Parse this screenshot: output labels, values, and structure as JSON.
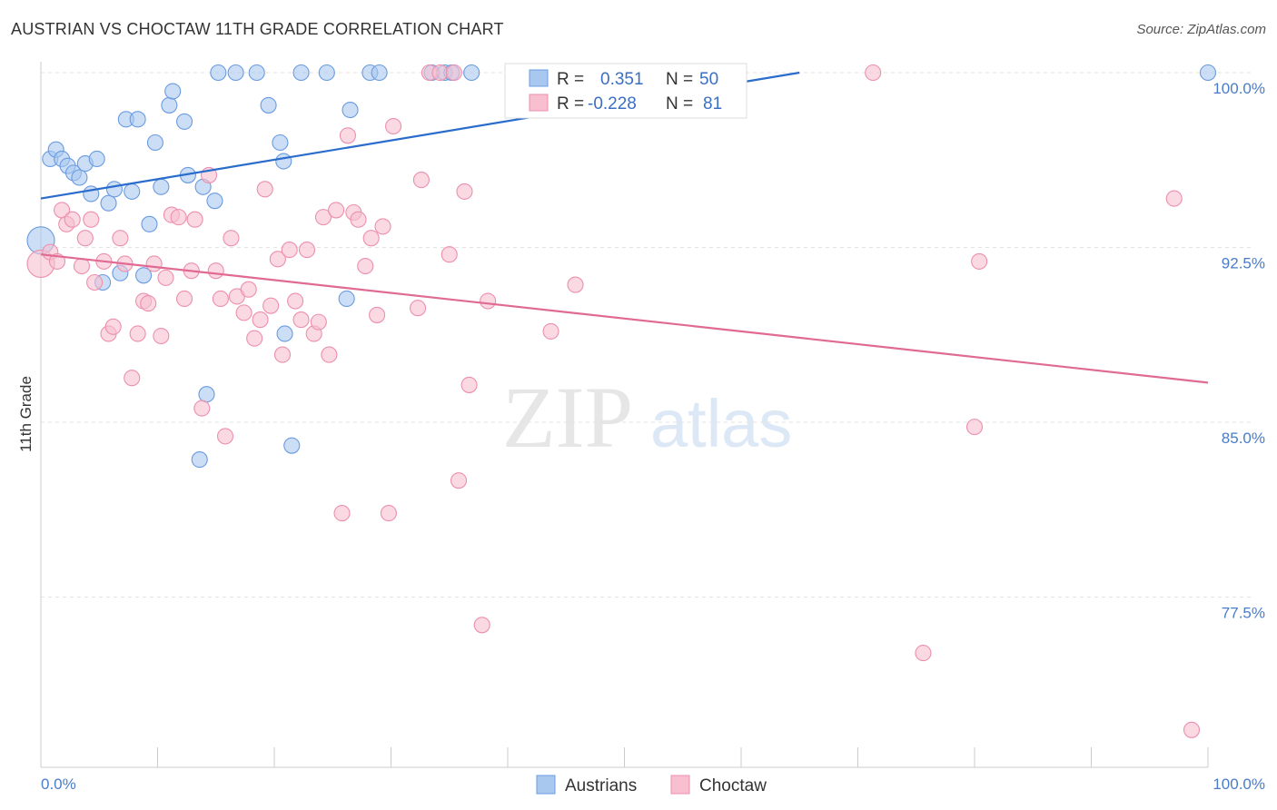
{
  "header": {
    "title": "AUSTRIAN VS CHOCTAW 11TH GRADE CORRELATION CHART",
    "source": "Source: ZipAtlas.com"
  },
  "watermark": {
    "zip": "ZIP",
    "atlas": "atlas"
  },
  "legend": {
    "r_label": "R =",
    "n_label": "N =",
    "rows": [
      {
        "r": "0.351",
        "n": "50"
      },
      {
        "r": "-0.228",
        "n": "81"
      }
    ]
  },
  "chart_data": {
    "type": "scatter",
    "title": "AUSTRIAN VS CHOCTAW 11TH GRADE CORRELATION CHART",
    "ylabel": "11th Grade",
    "xlabel": "",
    "xlim": [
      0,
      100
    ],
    "ylim": [
      70.5,
      101.5
    ],
    "x_tick_labels": [
      "0.0%",
      "100.0%"
    ],
    "y_ticks": [
      77.5,
      85.0,
      92.5,
      100.0
    ],
    "y_tick_labels": [
      "77.5%",
      "85.0%",
      "92.5%",
      "100.0%"
    ],
    "grid": true,
    "legend_position": "top-center",
    "colors": {
      "austrians_fill": "#a9c8f0",
      "austrians_stroke": "#6a9be0",
      "austrians_line": "#2a6ccc",
      "choctaw_fill": "#f7bfd0",
      "choctaw_stroke": "#ec8fae",
      "choctaw_line": "#e06a93",
      "tick_text": "#4a7cc9"
    },
    "series": [
      {
        "name": "Austrians",
        "r": 0.351,
        "n": 50,
        "trend": {
          "x": [
            0,
            65
          ],
          "y": [
            94.6,
            100.0
          ]
        },
        "points": [
          [
            0.0,
            92.8
          ],
          [
            0.8,
            96.3
          ],
          [
            1.3,
            96.7
          ],
          [
            1.8,
            96.3
          ],
          [
            2.3,
            96.0
          ],
          [
            2.8,
            95.7
          ],
          [
            3.3,
            95.5
          ],
          [
            3.8,
            96.1
          ],
          [
            4.3,
            94.8
          ],
          [
            4.8,
            96.3
          ],
          [
            5.3,
            91.0
          ],
          [
            5.8,
            94.4
          ],
          [
            6.3,
            95.0
          ],
          [
            6.8,
            91.4
          ],
          [
            7.3,
            98.0
          ],
          [
            7.8,
            94.9
          ],
          [
            8.3,
            98.0
          ],
          [
            8.8,
            91.3
          ],
          [
            9.3,
            93.5
          ],
          [
            9.8,
            97.0
          ],
          [
            10.3,
            95.1
          ],
          [
            11.0,
            98.6
          ],
          [
            11.3,
            99.2
          ],
          [
            12.3,
            97.9
          ],
          [
            12.6,
            95.6
          ],
          [
            13.6,
            83.4
          ],
          [
            13.9,
            95.1
          ],
          [
            14.2,
            86.2
          ],
          [
            14.9,
            94.5
          ],
          [
            15.2,
            100.0
          ],
          [
            16.7,
            100.0
          ],
          [
            18.5,
            100.0
          ],
          [
            19.5,
            98.6
          ],
          [
            20.5,
            97.0
          ],
          [
            20.8,
            96.2
          ],
          [
            20.9,
            88.8
          ],
          [
            21.5,
            84.0
          ],
          [
            22.3,
            100.0
          ],
          [
            24.5,
            100.0
          ],
          [
            26.2,
            90.3
          ],
          [
            26.5,
            98.4
          ],
          [
            28.2,
            100.0
          ],
          [
            29.0,
            100.0
          ],
          [
            33.5,
            100.0
          ],
          [
            34.6,
            100.0
          ],
          [
            35.2,
            100.0
          ],
          [
            36.9,
            100.0
          ],
          [
            41.0,
            100.0
          ],
          [
            52.5,
            100.0
          ],
          [
            100.0,
            100.0
          ]
        ]
      },
      {
        "name": "Choctaw",
        "r": -0.228,
        "n": 81,
        "trend": {
          "x": [
            0,
            100
          ],
          "y": [
            92.2,
            86.7
          ]
        },
        "points": [
          [
            0.0,
            91.8
          ],
          [
            0.8,
            92.3
          ],
          [
            1.4,
            91.9
          ],
          [
            1.8,
            94.1
          ],
          [
            2.2,
            93.5
          ],
          [
            2.7,
            93.7
          ],
          [
            3.5,
            91.7
          ],
          [
            3.8,
            92.9
          ],
          [
            4.3,
            93.7
          ],
          [
            4.6,
            91.0
          ],
          [
            5.4,
            91.9
          ],
          [
            5.8,
            88.8
          ],
          [
            6.2,
            89.1
          ],
          [
            6.8,
            92.9
          ],
          [
            7.2,
            91.8
          ],
          [
            7.8,
            86.9
          ],
          [
            8.3,
            88.8
          ],
          [
            8.8,
            90.2
          ],
          [
            9.2,
            90.1
          ],
          [
            9.7,
            91.8
          ],
          [
            10.3,
            88.7
          ],
          [
            10.7,
            91.2
          ],
          [
            11.2,
            93.9
          ],
          [
            11.8,
            93.8
          ],
          [
            12.3,
            90.3
          ],
          [
            12.9,
            91.5
          ],
          [
            13.2,
            93.7
          ],
          [
            13.8,
            85.6
          ],
          [
            14.4,
            95.6
          ],
          [
            15.0,
            91.5
          ],
          [
            15.4,
            90.3
          ],
          [
            15.8,
            84.4
          ],
          [
            16.3,
            92.9
          ],
          [
            16.8,
            90.4
          ],
          [
            17.4,
            89.7
          ],
          [
            17.8,
            90.7
          ],
          [
            18.3,
            88.6
          ],
          [
            18.8,
            89.4
          ],
          [
            19.2,
            95.0
          ],
          [
            19.7,
            90.0
          ],
          [
            20.3,
            92.0
          ],
          [
            20.7,
            87.9
          ],
          [
            21.3,
            92.4
          ],
          [
            21.8,
            90.2
          ],
          [
            22.3,
            89.4
          ],
          [
            22.8,
            92.4
          ],
          [
            23.4,
            88.8
          ],
          [
            23.8,
            89.3
          ],
          [
            24.2,
            93.8
          ],
          [
            24.7,
            87.9
          ],
          [
            25.3,
            94.1
          ],
          [
            25.8,
            81.1
          ],
          [
            26.3,
            97.3
          ],
          [
            26.8,
            94.0
          ],
          [
            27.2,
            93.7
          ],
          [
            27.8,
            91.7
          ],
          [
            28.3,
            92.9
          ],
          [
            28.8,
            89.6
          ],
          [
            29.3,
            93.4
          ],
          [
            29.8,
            81.1
          ],
          [
            30.2,
            97.7
          ],
          [
            32.3,
            89.9
          ],
          [
            32.6,
            95.4
          ],
          [
            33.3,
            100.0
          ],
          [
            34.2,
            100.0
          ],
          [
            35.0,
            92.2
          ],
          [
            35.4,
            100.0
          ],
          [
            35.8,
            82.5
          ],
          [
            36.3,
            94.9
          ],
          [
            36.7,
            86.6
          ],
          [
            37.8,
            76.3
          ],
          [
            38.3,
            90.2
          ],
          [
            42.0,
            100.0
          ],
          [
            43.7,
            88.9
          ],
          [
            45.8,
            90.9
          ],
          [
            71.3,
            100.0
          ],
          [
            75.6,
            75.1
          ],
          [
            80.0,
            84.8
          ],
          [
            80.4,
            91.9
          ],
          [
            97.1,
            94.6
          ],
          [
            98.6,
            71.8
          ]
        ]
      }
    ]
  },
  "bottom_legend": {
    "items": [
      {
        "label": "Austrians"
      },
      {
        "label": "Choctaw"
      }
    ]
  }
}
